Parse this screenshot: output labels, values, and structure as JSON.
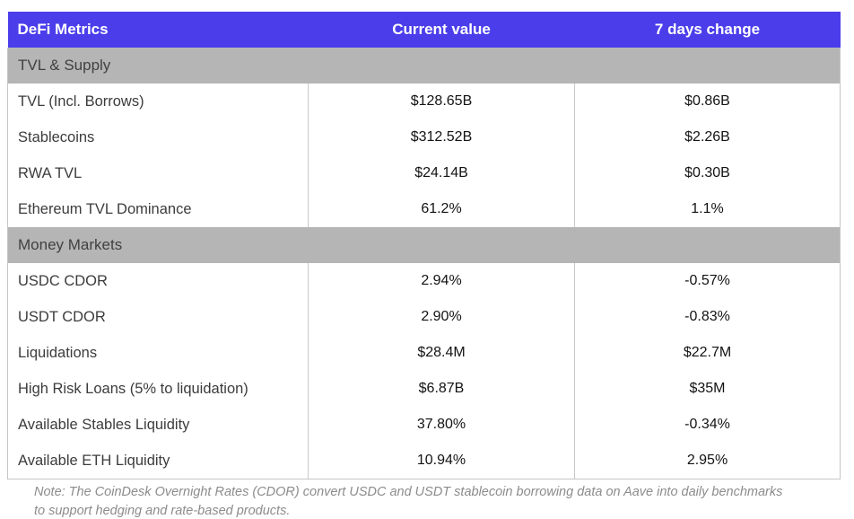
{
  "chart_data": {
    "type": "table",
    "title": "DeFi Metrics",
    "columns": [
      "DeFi Metrics",
      "Current value",
      "7 days change"
    ],
    "sections": [
      {
        "header": "TVL & Supply",
        "rows": [
          [
            "TVL (Incl. Borrows)",
            "$128.65B",
            "$0.86B"
          ],
          [
            "Stablecoins",
            "$312.52B",
            "$2.26B"
          ],
          [
            "RWA TVL",
            "$24.14B",
            "$0.30B"
          ],
          [
            "Ethereum TVL Dominance",
            "61.2%",
            "1.1%"
          ]
        ]
      },
      {
        "header": "Money Markets",
        "rows": [
          [
            "USDC CDOR",
            "2.94%",
            "-0.57%"
          ],
          [
            "USDT CDOR",
            "2.90%",
            "-0.83%"
          ],
          [
            "Liquidations",
            "$28.4M",
            "$22.7M"
          ],
          [
            "High Risk Loans (5% to liquidation)",
            "$6.87B",
            "$35M"
          ],
          [
            "Available Stables Liquidity",
            "37.80%",
            "-0.34%"
          ],
          [
            "Available ETH Liquidity",
            "10.94%",
            "2.95%"
          ]
        ]
      }
    ],
    "note": "Note: The CoinDesk Overnight Rates (CDOR) convert USDC and USDT stablecoin borrowing data on Aave into daily benchmarks to support hedging and rate-based products.",
    "layout_hints": {
      "grid": "vertical column dividers only, no horizontal row lines",
      "header_align": [
        "left",
        "center",
        "center"
      ],
      "value_align": "center"
    },
    "colors": {
      "header_bg": "#4B3EEA",
      "header_text": "#FFFFFF",
      "section_bg": "#B5B5B5",
      "section_text": "#414141",
      "label_text": "#3C3C3C",
      "value_text": "#131313",
      "border": "#C6C6C6",
      "note_text": "#8C8C8C",
      "background": "#FFFFFF"
    }
  }
}
